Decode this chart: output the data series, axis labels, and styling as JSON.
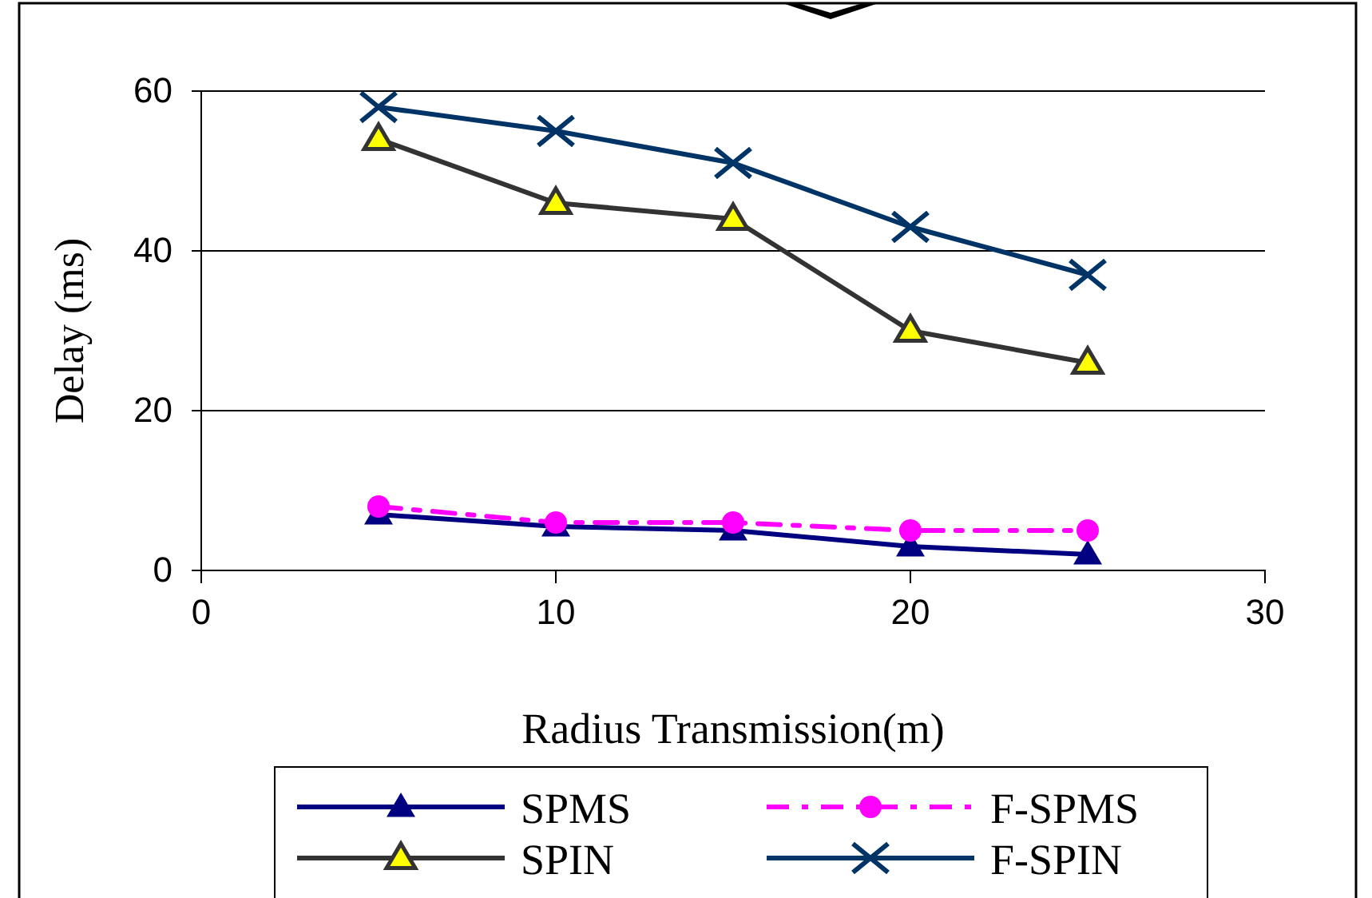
{
  "chart_data": {
    "type": "line",
    "xlabel": "Radius Transmission(m)",
    "ylabel": "Delay (ms)",
    "x": [
      5,
      10,
      15,
      20,
      25
    ],
    "series": [
      {
        "name": "SPMS",
        "color": "#000080",
        "values": [
          7,
          5.5,
          5,
          3,
          2
        ],
        "marker": "triangle",
        "line_style": "solid"
      },
      {
        "name": "F-SPMS",
        "color": "#ff00ff",
        "values": [
          8,
          6,
          6,
          5,
          5
        ],
        "marker": "circle",
        "line_style": "dashed"
      },
      {
        "name": "SPIN",
        "color": "#333333",
        "values": [
          54,
          46,
          44,
          30,
          26
        ],
        "marker": "triangle",
        "line_style": "solid"
      },
      {
        "name": "F-SPIN",
        "color": "#003366",
        "values": [
          58,
          55,
          51,
          43,
          37
        ],
        "marker": "cross",
        "line_style": "solid"
      }
    ],
    "xlim": [
      0,
      30
    ],
    "xticks": [
      0,
      10,
      20,
      30
    ],
    "ylim": [
      0,
      60
    ],
    "yticks": [
      0,
      20,
      40,
      60
    ],
    "grid": "y",
    "legend": "bottom"
  }
}
